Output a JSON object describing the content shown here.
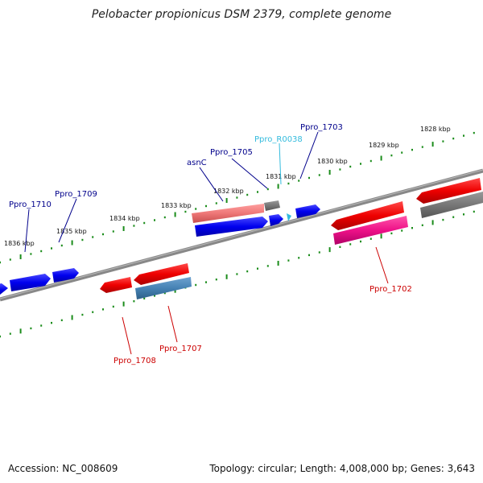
{
  "title": "Pelobacter propionicus DSM 2379, complete genome",
  "footer": {
    "accession": "Accession: NC_008609",
    "stats": "Topology: circular; Length: 4,008,000 bp; Genes: 3,643"
  },
  "colors": {
    "backbone": "#888888",
    "tick": "#1a8c1a",
    "forward_cds": "#0000ee",
    "reverse_cds": "#ee0000",
    "forward_label": "#00008b",
    "reverse_label": "#cc0000",
    "rna_label": "#33bbdd",
    "pseudogene": "#777777",
    "pink_gene": "#ee1188",
    "light_red_gene": "#ee7777",
    "steel_gene": "#4682b4"
  },
  "scale": {
    "tick_labels": [
      "1828 kbp",
      "1829 kbp",
      "1830 kbp",
      "1831 kbp",
      "1832 kbp",
      "1833 kbp",
      "1834 kbp",
      "1835 kbp",
      "1836 kbp"
    ]
  },
  "gene_labels": [
    {
      "name": "Ppro_1703",
      "strand": "forward"
    },
    {
      "name": "Ppro_R0038",
      "strand": "rna"
    },
    {
      "name": "Ppro_1705",
      "strand": "forward"
    },
    {
      "name": "asnC",
      "strand": "forward"
    },
    {
      "name": "Ppro_1709",
      "strand": "forward"
    },
    {
      "name": "Ppro_1710",
      "strand": "forward"
    },
    {
      "name": "Ppro_1702",
      "strand": "reverse"
    },
    {
      "name": "Ppro_1707",
      "strand": "reverse"
    },
    {
      "name": "Ppro_1708",
      "strand": "reverse"
    }
  ]
}
